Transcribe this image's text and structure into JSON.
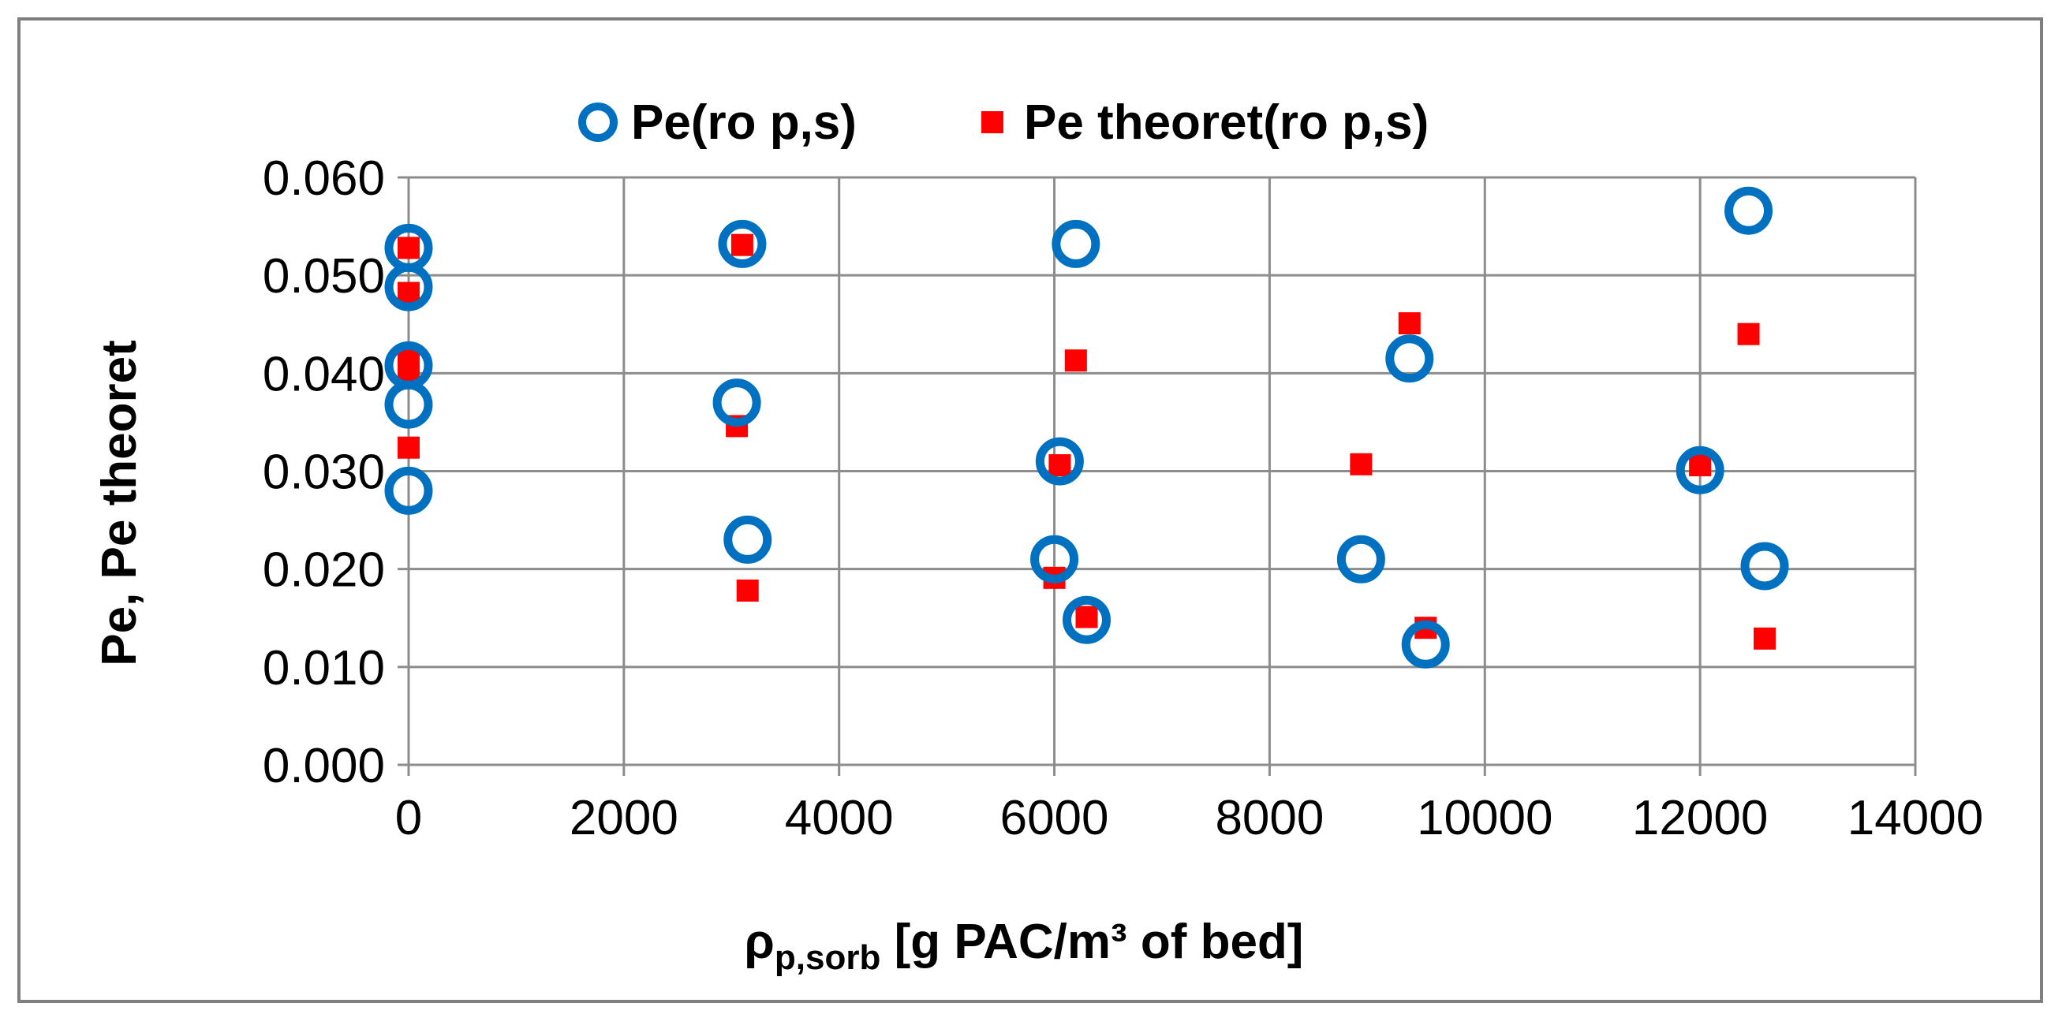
{
  "chart_data": {
    "type": "scatter",
    "title": "",
    "xlabel_symbol": "ρ",
    "xlabel_subscript": "p,sorb",
    "xlabel_rest": " [g PAC/m³ of bed]",
    "ylabel": "Pe, Pe theoret",
    "xlim": [
      0,
      14000
    ],
    "ylim": [
      0,
      0.06
    ],
    "x_ticks": [
      0,
      2000,
      4000,
      6000,
      8000,
      10000,
      12000,
      14000
    ],
    "x_tick_labels": [
      "0",
      "2000",
      "4000",
      "6000",
      "8000",
      "10000",
      "12000",
      "14000"
    ],
    "y_ticks": [
      0,
      0.01,
      0.02,
      0.03,
      0.04,
      0.05,
      0.06
    ],
    "y_tick_labels": [
      "0.000",
      "0.010",
      "0.020",
      "0.030",
      "0.040",
      "0.050",
      "0.060"
    ],
    "grid": true,
    "legend_position": "top",
    "series": [
      {
        "name": "Pe(ro p,s)",
        "marker": "circle-open",
        "color": "#0070c0",
        "points": [
          {
            "x": 0,
            "y": 0.0528
          },
          {
            "x": 0,
            "y": 0.0488
          },
          {
            "x": 0,
            "y": 0.0408
          },
          {
            "x": 0,
            "y": 0.0368
          },
          {
            "x": 0,
            "y": 0.028
          },
          {
            "x": 3100,
            "y": 0.0532
          },
          {
            "x": 3050,
            "y": 0.037
          },
          {
            "x": 3150,
            "y": 0.023
          },
          {
            "x": 6200,
            "y": 0.0532
          },
          {
            "x": 6050,
            "y": 0.031
          },
          {
            "x": 6000,
            "y": 0.021
          },
          {
            "x": 6300,
            "y": 0.0148
          },
          {
            "x": 9300,
            "y": 0.0415
          },
          {
            "x": 8850,
            "y": 0.021
          },
          {
            "x": 9450,
            "y": 0.0123
          },
          {
            "x": 12450,
            "y": 0.0566
          },
          {
            "x": 12000,
            "y": 0.0301
          },
          {
            "x": 12600,
            "y": 0.0203
          }
        ]
      },
      {
        "name": "Pe theoret(ro p,s)",
        "marker": "square",
        "color": "#ff0000",
        "points": [
          {
            "x": 0,
            "y": 0.0528
          },
          {
            "x": 0,
            "y": 0.0482
          },
          {
            "x": 0,
            "y": 0.0418
          },
          {
            "x": 0,
            "y": 0.0396
          },
          {
            "x": 0,
            "y": 0.0324
          },
          {
            "x": 3100,
            "y": 0.0531
          },
          {
            "x": 3050,
            "y": 0.0346
          },
          {
            "x": 3150,
            "y": 0.0178
          },
          {
            "x": 6200,
            "y": 0.0413
          },
          {
            "x": 6050,
            "y": 0.0306
          },
          {
            "x": 6000,
            "y": 0.0191
          },
          {
            "x": 6300,
            "y": 0.0151
          },
          {
            "x": 9300,
            "y": 0.0451
          },
          {
            "x": 8850,
            "y": 0.0307
          },
          {
            "x": 9450,
            "y": 0.014
          },
          {
            "x": 12450,
            "y": 0.044
          },
          {
            "x": 12000,
            "y": 0.0306
          },
          {
            "x": 12600,
            "y": 0.0129
          }
        ]
      }
    ]
  }
}
